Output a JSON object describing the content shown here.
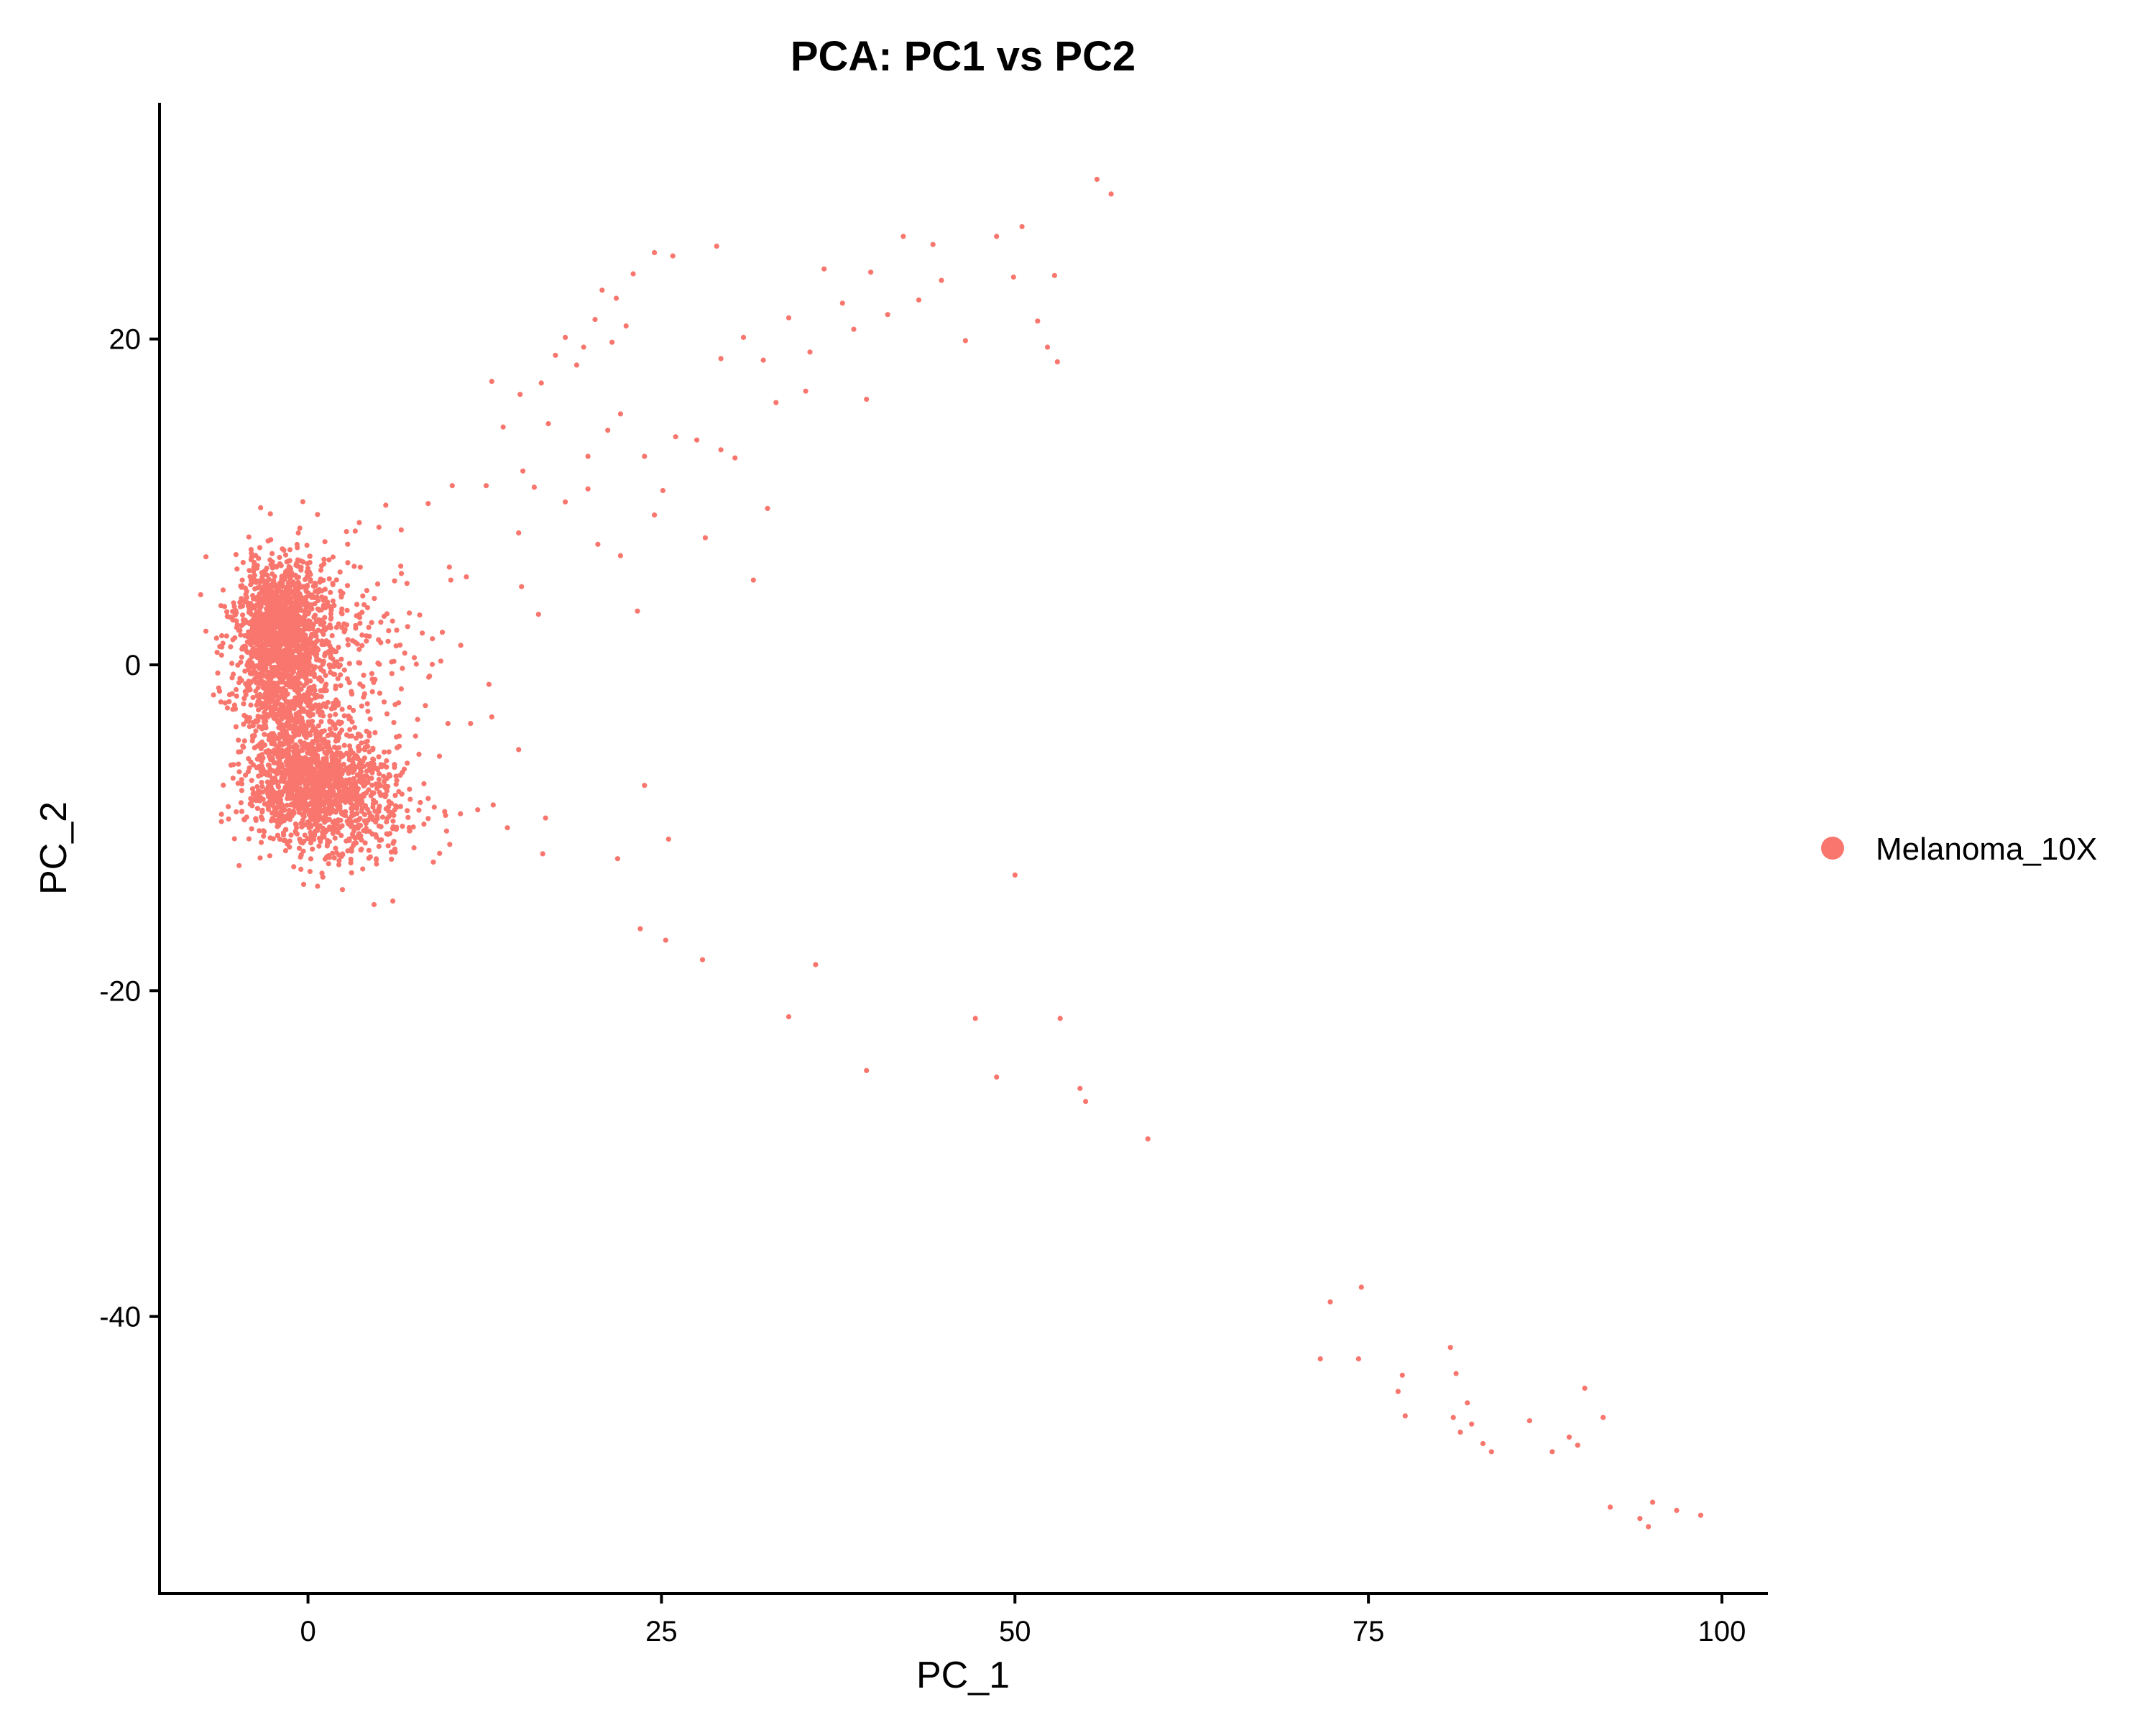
{
  "chart_data": {
    "type": "scatter",
    "title": "PCA: PC1 vs PC2",
    "xlabel": "PC_1",
    "ylabel": "PC_2",
    "xlim": [
      -10.5,
      103
    ],
    "ylim": [
      -57,
      34.5
    ],
    "xticks": [
      0,
      25,
      50,
      75,
      100
    ],
    "yticks": [
      -40,
      -20,
      0,
      20
    ],
    "xtick_labels": [
      "0",
      "25",
      "50",
      "75",
      "100"
    ],
    "ytick_labels": [
      "-40",
      "-20",
      "0",
      "20"
    ],
    "grid": false,
    "legend_position": "right",
    "color": "#F8766D",
    "series": [
      {
        "name": "Melanoma_10X",
        "clusters": [
          {
            "center": [
              -2.0,
              2.0
            ],
            "spread": [
              1.6,
              2.2
            ],
            "n": 1400
          },
          {
            "center": [
              0.5,
              -7.5
            ],
            "spread": [
              2.4,
              1.8
            ],
            "n": 1300
          },
          {
            "center": [
              -1.5,
              -3.0
            ],
            "spread": [
              1.6,
              1.8
            ],
            "n": 400
          },
          {
            "center": [
              2.5,
              1.0
            ],
            "spread": [
              2.8,
              3.0
            ],
            "n": 250
          },
          {
            "center": [
              4.5,
              -9.0
            ],
            "spread": [
              2.5,
              2.0
            ],
            "n": 150
          }
        ],
        "points": [
          [
            55.8,
            29.8
          ],
          [
            56.8,
            28.9
          ],
          [
            50.5,
            26.9
          ],
          [
            42.1,
            26.3
          ],
          [
            44.2,
            25.8
          ],
          [
            48.7,
            26.3
          ],
          [
            24.5,
            25.3
          ],
          [
            25.8,
            25.1
          ],
          [
            28.9,
            25.7
          ],
          [
            36.5,
            24.3
          ],
          [
            39.8,
            24.1
          ],
          [
            44.8,
            23.6
          ],
          [
            49.9,
            23.8
          ],
          [
            52.8,
            23.9
          ],
          [
            46.5,
            19.9
          ],
          [
            51.6,
            21.1
          ],
          [
            52.3,
            19.5
          ],
          [
            53.0,
            18.6
          ],
          [
            39.5,
            16.3
          ],
          [
            30.8,
            20.1
          ],
          [
            32.2,
            18.7
          ],
          [
            34.0,
            21.3
          ],
          [
            35.5,
            19.2
          ],
          [
            37.8,
            22.2
          ],
          [
            41.0,
            21.5
          ],
          [
            43.2,
            22.4
          ],
          [
            38.6,
            20.6
          ],
          [
            33.1,
            16.1
          ],
          [
            35.2,
            16.8
          ],
          [
            29.2,
            18.8
          ],
          [
            21.8,
            22.5
          ],
          [
            20.3,
            21.2
          ],
          [
            22.5,
            20.8
          ],
          [
            19.5,
            19.5
          ],
          [
            18.2,
            20.1
          ],
          [
            17.5,
            19.0
          ],
          [
            20.8,
            23.0
          ],
          [
            23.0,
            24.0
          ],
          [
            21.5,
            19.8
          ],
          [
            19.0,
            18.4
          ],
          [
            16.5,
            17.3
          ],
          [
            15.0,
            16.6
          ],
          [
            13.0,
            17.4
          ],
          [
            13.8,
            14.6
          ],
          [
            15.2,
            11.9
          ],
          [
            16.0,
            10.9
          ],
          [
            17.0,
            14.8
          ],
          [
            18.2,
            10.0
          ],
          [
            19.8,
            12.8
          ],
          [
            19.8,
            10.8
          ],
          [
            21.2,
            14.4
          ],
          [
            22.1,
            15.4
          ],
          [
            23.8,
            12.8
          ],
          [
            24.5,
            9.2
          ],
          [
            25.1,
            10.7
          ],
          [
            26.0,
            14.0
          ],
          [
            27.5,
            13.8
          ],
          [
            29.2,
            13.2
          ],
          [
            30.2,
            12.7
          ],
          [
            32.5,
            9.6
          ],
          [
            20.5,
            7.4
          ],
          [
            22.1,
            6.7
          ],
          [
            28.1,
            7.8
          ],
          [
            31.5,
            5.2
          ],
          [
            23.3,
            3.3
          ],
          [
            15.1,
            4.8
          ],
          [
            14.9,
            8.1
          ],
          [
            12.6,
            11.0
          ],
          [
            10.2,
            11.0
          ],
          [
            8.5,
            9.9
          ],
          [
            5.5,
            9.8
          ],
          [
            7.0,
            5.0
          ],
          [
            10.0,
            6.0
          ],
          [
            11.2,
            5.4
          ],
          [
            16.3,
            3.1
          ],
          [
            10.1,
            5.2
          ],
          [
            9.5,
            2.0
          ],
          [
            10.8,
            1.2
          ],
          [
            8.8,
            1.6
          ],
          [
            8.3,
            -2.5
          ],
          [
            9.9,
            -3.6
          ],
          [
            11.5,
            -3.6
          ],
          [
            12.8,
            -1.2
          ],
          [
            13.0,
            -3.2
          ],
          [
            13.1,
            -8.6
          ],
          [
            14.1,
            -10.0
          ],
          [
            14.9,
            -5.2
          ],
          [
            16.8,
            -9.4
          ],
          [
            16.6,
            -11.6
          ],
          [
            12.0,
            -8.9
          ],
          [
            6.0,
            -14.5
          ],
          [
            8.5,
            -8.2
          ],
          [
            9.8,
            -10.2
          ],
          [
            21.9,
            -11.9
          ],
          [
            23.8,
            -7.4
          ],
          [
            25.5,
            -10.7
          ],
          [
            23.5,
            -16.2
          ],
          [
            25.3,
            -16.9
          ],
          [
            27.9,
            -18.1
          ],
          [
            35.9,
            -18.4
          ],
          [
            34.0,
            -21.6
          ],
          [
            39.5,
            -24.9
          ],
          [
            47.2,
            -21.7
          ],
          [
            48.7,
            -25.3
          ],
          [
            50.0,
            -12.9
          ],
          [
            53.2,
            -21.7
          ],
          [
            54.6,
            -26.0
          ],
          [
            55.0,
            -26.8
          ],
          [
            59.4,
            -29.1
          ],
          [
            72.3,
            -39.1
          ],
          [
            74.5,
            -38.2
          ],
          [
            71.6,
            -42.6
          ],
          [
            74.3,
            -42.6
          ],
          [
            77.4,
            -43.6
          ],
          [
            77.1,
            -44.6
          ],
          [
            77.6,
            -46.1
          ],
          [
            80.8,
            -41.9
          ],
          [
            81.2,
            -43.5
          ],
          [
            82.0,
            -45.3
          ],
          [
            81.0,
            -46.2
          ],
          [
            81.5,
            -47.1
          ],
          [
            82.3,
            -46.6
          ],
          [
            83.1,
            -47.8
          ],
          [
            83.7,
            -48.3
          ],
          [
            86.4,
            -46.4
          ],
          [
            88.0,
            -48.3
          ],
          [
            89.2,
            -47.4
          ],
          [
            89.8,
            -47.9
          ],
          [
            90.3,
            -44.4
          ],
          [
            91.6,
            -46.2
          ],
          [
            92.1,
            -51.7
          ],
          [
            94.2,
            -52.4
          ],
          [
            94.8,
            -52.9
          ],
          [
            95.1,
            -51.4
          ],
          [
            96.8,
            -51.9
          ],
          [
            98.5,
            -52.2
          ]
        ]
      }
    ]
  }
}
